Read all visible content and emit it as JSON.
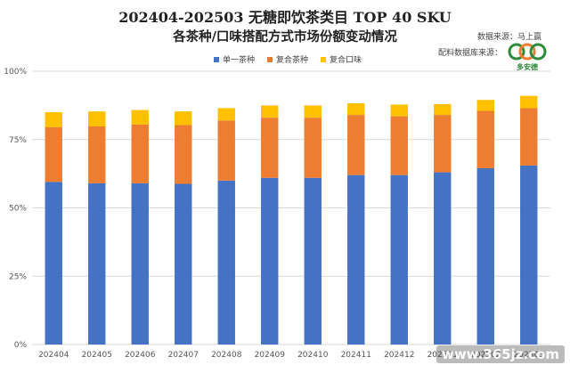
{
  "title": "202404-202503 无糖即饮茶类目 TOP 40 SKU",
  "subtitle": "各茶种/口味搭配方式市场份额变动情况",
  "source_label": "数据来源：马上赢",
  "source_label_2": "配料数据库来源：",
  "logo_text": "多安德",
  "watermark": "www.365jz.com",
  "colors": {
    "single": "#4472C4",
    "compound_tea": "#ED7D31",
    "compound_flavor": "#FFC000",
    "logo_green": "#2e8b3a",
    "logo_orange": "#ED7D31"
  },
  "chart_data": {
    "type": "bar",
    "stacked": true,
    "categories": [
      "202404",
      "202405",
      "202406",
      "202407",
      "202408",
      "202409",
      "202410",
      "202411",
      "202412",
      "202501",
      "202502",
      "202503"
    ],
    "series": [
      {
        "name": "单一茶种",
        "values": [
          59.5,
          59.0,
          59.0,
          58.8,
          60.0,
          61.0,
          61.0,
          62.0,
          62.0,
          63.0,
          64.5,
          65.5
        ]
      },
      {
        "name": "复合茶种",
        "values": [
          20.0,
          20.8,
          21.5,
          21.5,
          22.0,
          22.0,
          22.0,
          22.0,
          21.5,
          21.0,
          21.0,
          21.0
        ]
      },
      {
        "name": "复合口味",
        "values": [
          5.5,
          5.5,
          5.3,
          5.0,
          4.5,
          4.5,
          4.5,
          4.3,
          4.3,
          4.0,
          4.0,
          4.5
        ]
      }
    ],
    "y_ticks": [
      "0%",
      "25%",
      "50%",
      "75%",
      "100%"
    ],
    "ylim": [
      0,
      100
    ],
    "grid": true,
    "legend_placement": "top-center"
  }
}
